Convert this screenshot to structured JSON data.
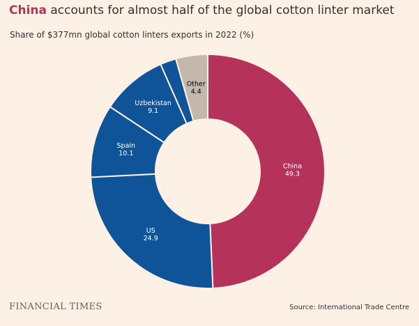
{
  "header": {
    "title_highlight": "China",
    "title_rest": " accounts for almost half of the global cotton linter market",
    "subtitle": "Share of $377mn global cotton linters exports in 2022 (%)"
  },
  "footer": {
    "brand": "FINANCIAL TIMES",
    "source": "Source: International Trade Centre"
  },
  "chart_data": {
    "type": "pie",
    "style": "donut",
    "title": "China accounts for almost half of the global cotton linter market",
    "subtitle": "Share of $377mn global cotton linters exports in 2022 (%)",
    "unit": "%",
    "slices": [
      {
        "label": "China",
        "value": 49.3,
        "value_label": "49.3",
        "color": "#b5325b",
        "text_color": "#ffffff"
      },
      {
        "label": "US",
        "value": 24.9,
        "value_label": "24.9",
        "color": "#0f5499",
        "text_color": "#ffffff"
      },
      {
        "label": "Spain",
        "value": 10.1,
        "value_label": "10.1",
        "color": "#0f5499",
        "text_color": "#ffffff"
      },
      {
        "label": "Uzbekistan",
        "value": 9.1,
        "value_label": "9.1",
        "color": "#0f5499",
        "text_color": "#ffffff"
      },
      {
        "label": "",
        "value": 2.2,
        "value_label": "",
        "color": "#0f5499",
        "text_color": "#ffffff"
      },
      {
        "label": "Other",
        "value": 4.4,
        "value_label": "4.4",
        "color": "#c4b8ad",
        "text_color": "#000000"
      }
    ],
    "start_angle": "12 o'clock",
    "direction": "clockwise",
    "legend": "none"
  }
}
